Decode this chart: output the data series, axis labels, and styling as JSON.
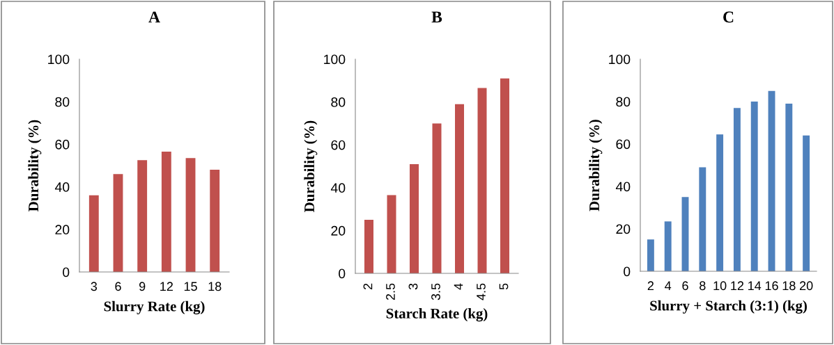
{
  "chart_data": [
    {
      "type": "bar",
      "title": "A",
      "xlabel": "Slurry Rate (kg)",
      "ylabel": "Durability (%)",
      "categories": [
        "3",
        "6",
        "9",
        "12",
        "15",
        "18"
      ],
      "values": [
        36,
        46,
        52.5,
        56.5,
        53.5,
        48
      ],
      "color": "#c0504d",
      "ylim": [
        0,
        100
      ],
      "yticks": [
        0,
        20,
        40,
        60,
        80,
        100
      ],
      "grid": false,
      "legend": false
    },
    {
      "type": "bar",
      "title": "B",
      "xlabel": "Starch Rate (kg)",
      "ylabel": "Durability (%)",
      "categories": [
        "2",
        "2.5",
        "3",
        "3.5",
        "4",
        "4.5",
        "5"
      ],
      "values": [
        25,
        36.5,
        51,
        70,
        79,
        86.5,
        91
      ],
      "color": "#c0504d",
      "ylim": [
        0,
        100
      ],
      "yticks": [
        0,
        20,
        40,
        60,
        80,
        100
      ],
      "grid": false,
      "legend": false
    },
    {
      "type": "bar",
      "title": "C",
      "xlabel": "Slurry + Starch (3:1) (kg)",
      "ylabel": "Durability (%)",
      "categories": [
        "2",
        "4",
        "6",
        "8",
        "10",
        "12",
        "14",
        "16",
        "18",
        "20"
      ],
      "values": [
        15,
        23.5,
        35,
        49,
        64.5,
        77,
        80,
        85,
        79,
        64
      ],
      "color": "#4f81bd",
      "ylim": [
        0,
        100
      ],
      "yticks": [
        0,
        20,
        40,
        60,
        80,
        100
      ],
      "grid": false,
      "legend": false
    }
  ]
}
